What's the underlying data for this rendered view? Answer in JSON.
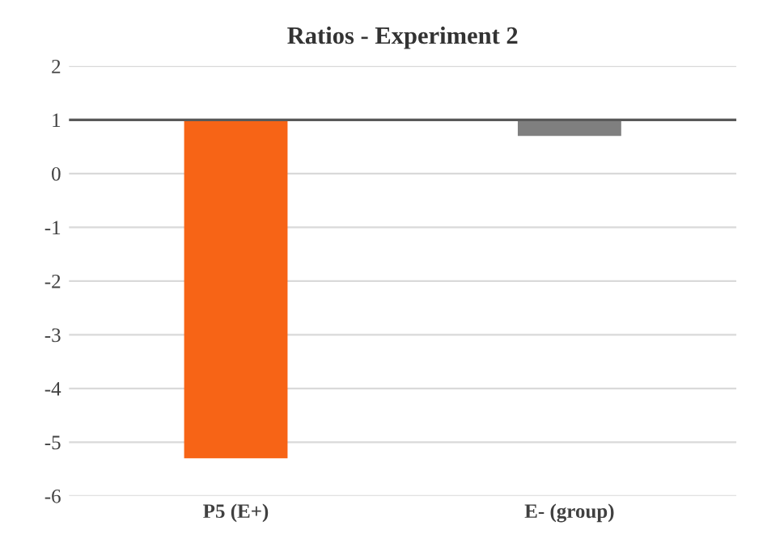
{
  "chart_data": {
    "type": "bar",
    "title": "Ratios - Experiment 2",
    "categories": [
      "P5 (E+)",
      "E- (group)"
    ],
    "values": [
      -6.3,
      -0.3
    ],
    "base": [
      1,
      1
    ],
    "colors": [
      "#f76416",
      "#7f7f7f"
    ],
    "ylim": [
      -6,
      2
    ],
    "yticks": [
      -6,
      -5,
      -4,
      -3,
      -2,
      -1,
      0,
      1,
      2
    ],
    "grid": "y",
    "ref_lines": [
      {
        "axis": "y",
        "value": 1,
        "color": "#595959"
      }
    ]
  }
}
